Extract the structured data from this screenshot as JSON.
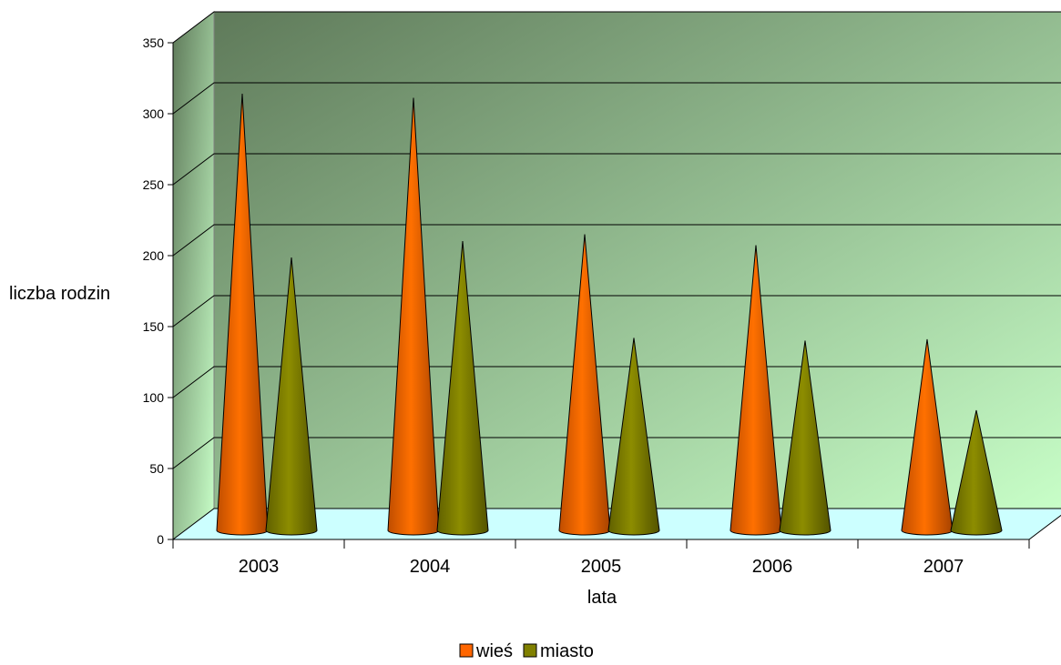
{
  "chart_data": {
    "type": "bar",
    "style": "3d-cone",
    "categories": [
      "2003",
      "2004",
      "2005",
      "2006",
      "2007"
    ],
    "series": [
      {
        "name": "wieś",
        "values": [
          320,
          317,
          217,
          209,
          140
        ],
        "color": "#ff6600"
      },
      {
        "name": "miasto",
        "values": [
          200,
          212,
          141,
          139,
          88
        ],
        "color": "#808000"
      }
    ],
    "xlabel": "lata",
    "ylabel": "liczba rodzin",
    "ylim": [
      0,
      350
    ],
    "yticks": [
      0,
      50,
      100,
      150,
      200,
      250,
      300,
      350
    ],
    "grid": true,
    "legend_position": "bottom",
    "colors": {
      "back_wall_dark": "#5f7a5a",
      "back_wall_light": "#c8ffc8",
      "floor": "#ccffff",
      "gridline": "#000000"
    }
  }
}
